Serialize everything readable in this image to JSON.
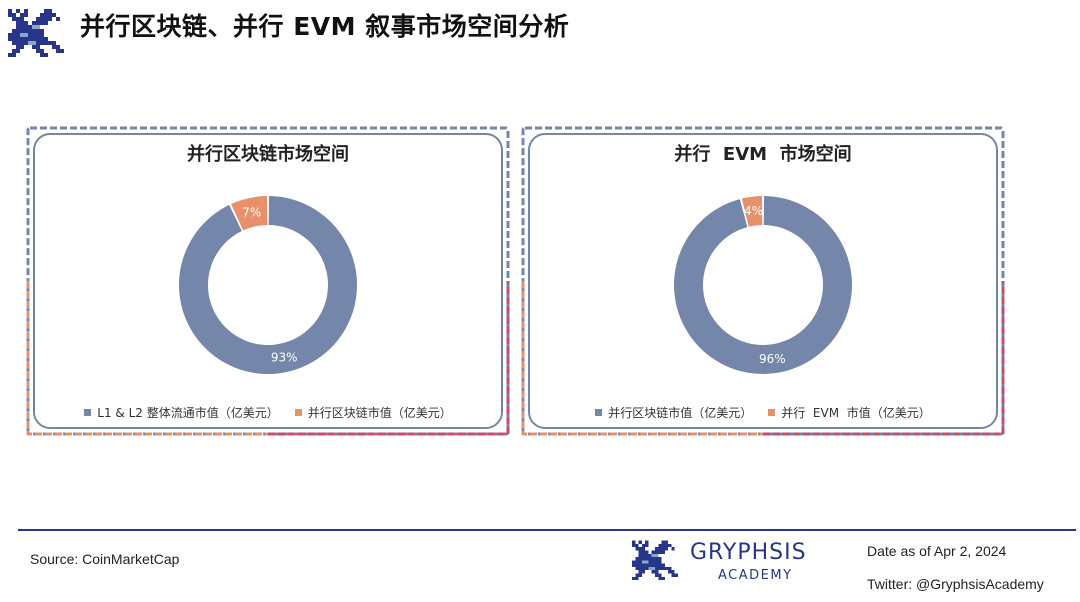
{
  "page": {
    "title": "并行区块链、并行 EVM 叙事市场空间分析"
  },
  "colors": {
    "navy": "#27358a",
    "slate_blue": "#7486aa",
    "orange": "#e7906a",
    "pink_red": "#cf4a6c",
    "light_blue": "#8fa5c7"
  },
  "icons": {
    "brand_logo": "pixel-griffin-logo"
  },
  "chart_data": [
    {
      "type": "pie",
      "subtype": "donut",
      "title": "并行区块链市场空间",
      "labels": [
        "L1 & L2 整体流通市值（亿美元）",
        "并行区块链市值（亿美元）"
      ],
      "values": [
        93,
        7
      ],
      "data_labels": [
        "93%",
        "7%"
      ],
      "colors": [
        "#7486aa",
        "#e7906a"
      ],
      "legend_position": "bottom"
    },
    {
      "type": "pie",
      "subtype": "donut",
      "title": "并行  EVM  市场空间",
      "labels": [
        "并行区块链市值（亿美元）",
        "并行  EVM  市值（亿美元）"
      ],
      "values": [
        96,
        4
      ],
      "data_labels": [
        "96%",
        "4%"
      ],
      "colors": [
        "#7486aa",
        "#e7906a"
      ],
      "legend_position": "bottom"
    }
  ],
  "footer": {
    "source": "Source: CoinMarketCap",
    "brand_name": "GRYPHSIS",
    "brand_sub": "ACADEMY",
    "date": "Date as of Apr 2, 2024",
    "twitter": "Twitter: @GryphsisAcademy"
  }
}
